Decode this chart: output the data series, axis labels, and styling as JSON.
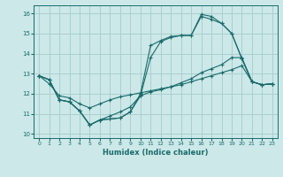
{
  "title": "",
  "xlabel": "Humidex (Indice chaleur)",
  "ylabel": "",
  "xlim": [
    -0.5,
    23.5
  ],
  "ylim": [
    9.8,
    16.4
  ],
  "xticks": [
    0,
    1,
    2,
    3,
    4,
    5,
    6,
    7,
    8,
    9,
    10,
    11,
    12,
    13,
    14,
    15,
    16,
    17,
    18,
    19,
    20,
    21,
    22,
    23
  ],
  "yticks": [
    10,
    11,
    12,
    13,
    14,
    15,
    16
  ],
  "bg_color": "#cce8e8",
  "grid_color": "#aacfcf",
  "line_color": "#1a6b6b",
  "lines": [
    {
      "x": [
        0,
        1,
        2,
        3,
        4,
        5,
        6,
        7,
        8,
        9,
        10,
        11,
        12,
        13,
        14,
        15,
        16,
        17,
        18,
        19,
        20,
        21,
        22,
        23
      ],
      "y": [
        12.9,
        12.7,
        11.7,
        11.6,
        11.15,
        10.45,
        10.7,
        10.75,
        10.8,
        11.1,
        11.9,
        13.8,
        14.6,
        14.8,
        14.9,
        14.9,
        15.95,
        15.85,
        15.5,
        15.0,
        13.75,
        12.6,
        12.45,
        12.5
      ]
    },
    {
      "x": [
        0,
        1,
        2,
        3,
        4,
        5,
        6,
        7,
        8,
        9,
        10,
        11,
        12,
        13,
        14,
        15,
        16,
        17,
        18,
        19,
        20,
        21,
        22,
        23
      ],
      "y": [
        12.9,
        12.7,
        11.7,
        11.6,
        11.15,
        10.45,
        10.7,
        10.75,
        10.8,
        11.1,
        12.0,
        14.4,
        14.65,
        14.85,
        14.9,
        14.9,
        15.85,
        15.7,
        15.5,
        15.0,
        13.75,
        12.6,
        12.45,
        12.5
      ]
    },
    {
      "x": [
        0,
        1,
        2,
        3,
        4,
        5,
        6,
        7,
        8,
        9,
        10,
        11,
        12,
        13,
        14,
        15,
        16,
        17,
        18,
        19,
        20,
        21,
        22,
        23
      ],
      "y": [
        12.9,
        12.7,
        11.7,
        11.6,
        11.15,
        10.45,
        10.7,
        10.9,
        11.1,
        11.35,
        11.9,
        12.1,
        12.2,
        12.35,
        12.55,
        12.75,
        13.05,
        13.25,
        13.45,
        13.8,
        13.8,
        12.6,
        12.45,
        12.5
      ]
    },
    {
      "x": [
        0,
        1,
        2,
        3,
        4,
        5,
        6,
        7,
        8,
        9,
        10,
        11,
        12,
        13,
        14,
        15,
        16,
        17,
        18,
        19,
        20,
        21,
        22,
        23
      ],
      "y": [
        12.9,
        12.5,
        11.9,
        11.8,
        11.5,
        11.3,
        11.5,
        11.7,
        11.85,
        11.95,
        12.05,
        12.15,
        12.25,
        12.35,
        12.45,
        12.6,
        12.75,
        12.9,
        13.05,
        13.2,
        13.4,
        12.6,
        12.45,
        12.5
      ]
    }
  ]
}
